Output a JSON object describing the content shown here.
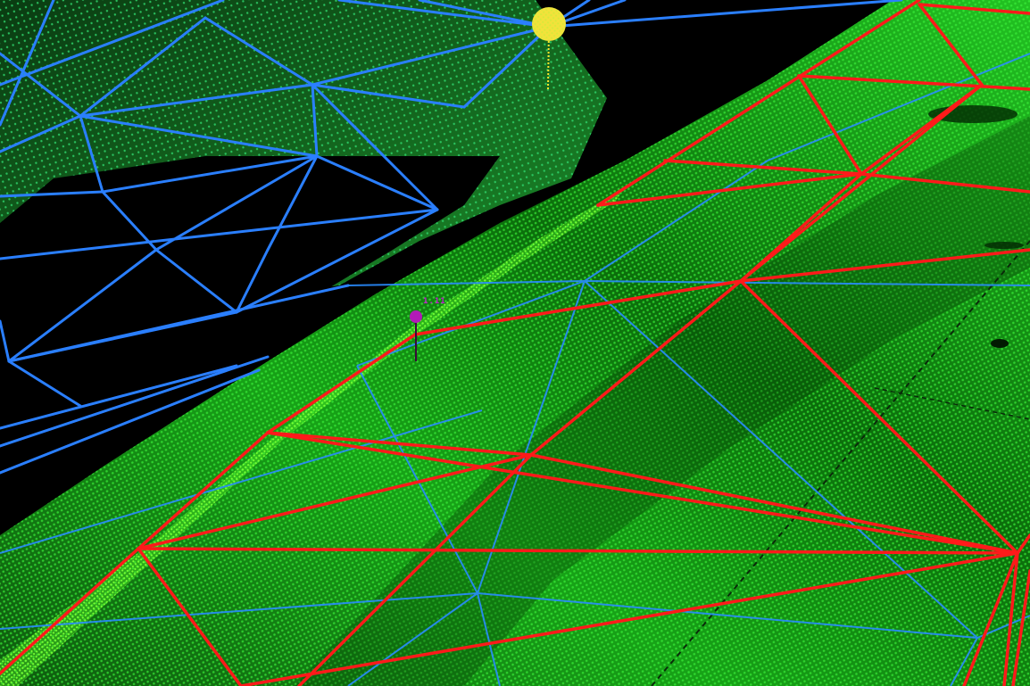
{
  "view": {
    "background_color": "#000000",
    "point_cloud_colors": [
      "#0a3a0a",
      "#0f6e12",
      "#1fb51f",
      "#35e635",
      "#7dff3a",
      "#3cc8a8"
    ],
    "mesh_colors": {
      "ground_tin": "#ff1a1a",
      "surface_tin": "#2a7fff"
    }
  },
  "markers": {
    "target_marker": {
      "icon": "target-marker-icon",
      "color": "#ffe52a"
    },
    "survey_point": {
      "icon": "survey-point-icon",
      "color": "#b21ab8",
      "label": "1.11"
    }
  }
}
